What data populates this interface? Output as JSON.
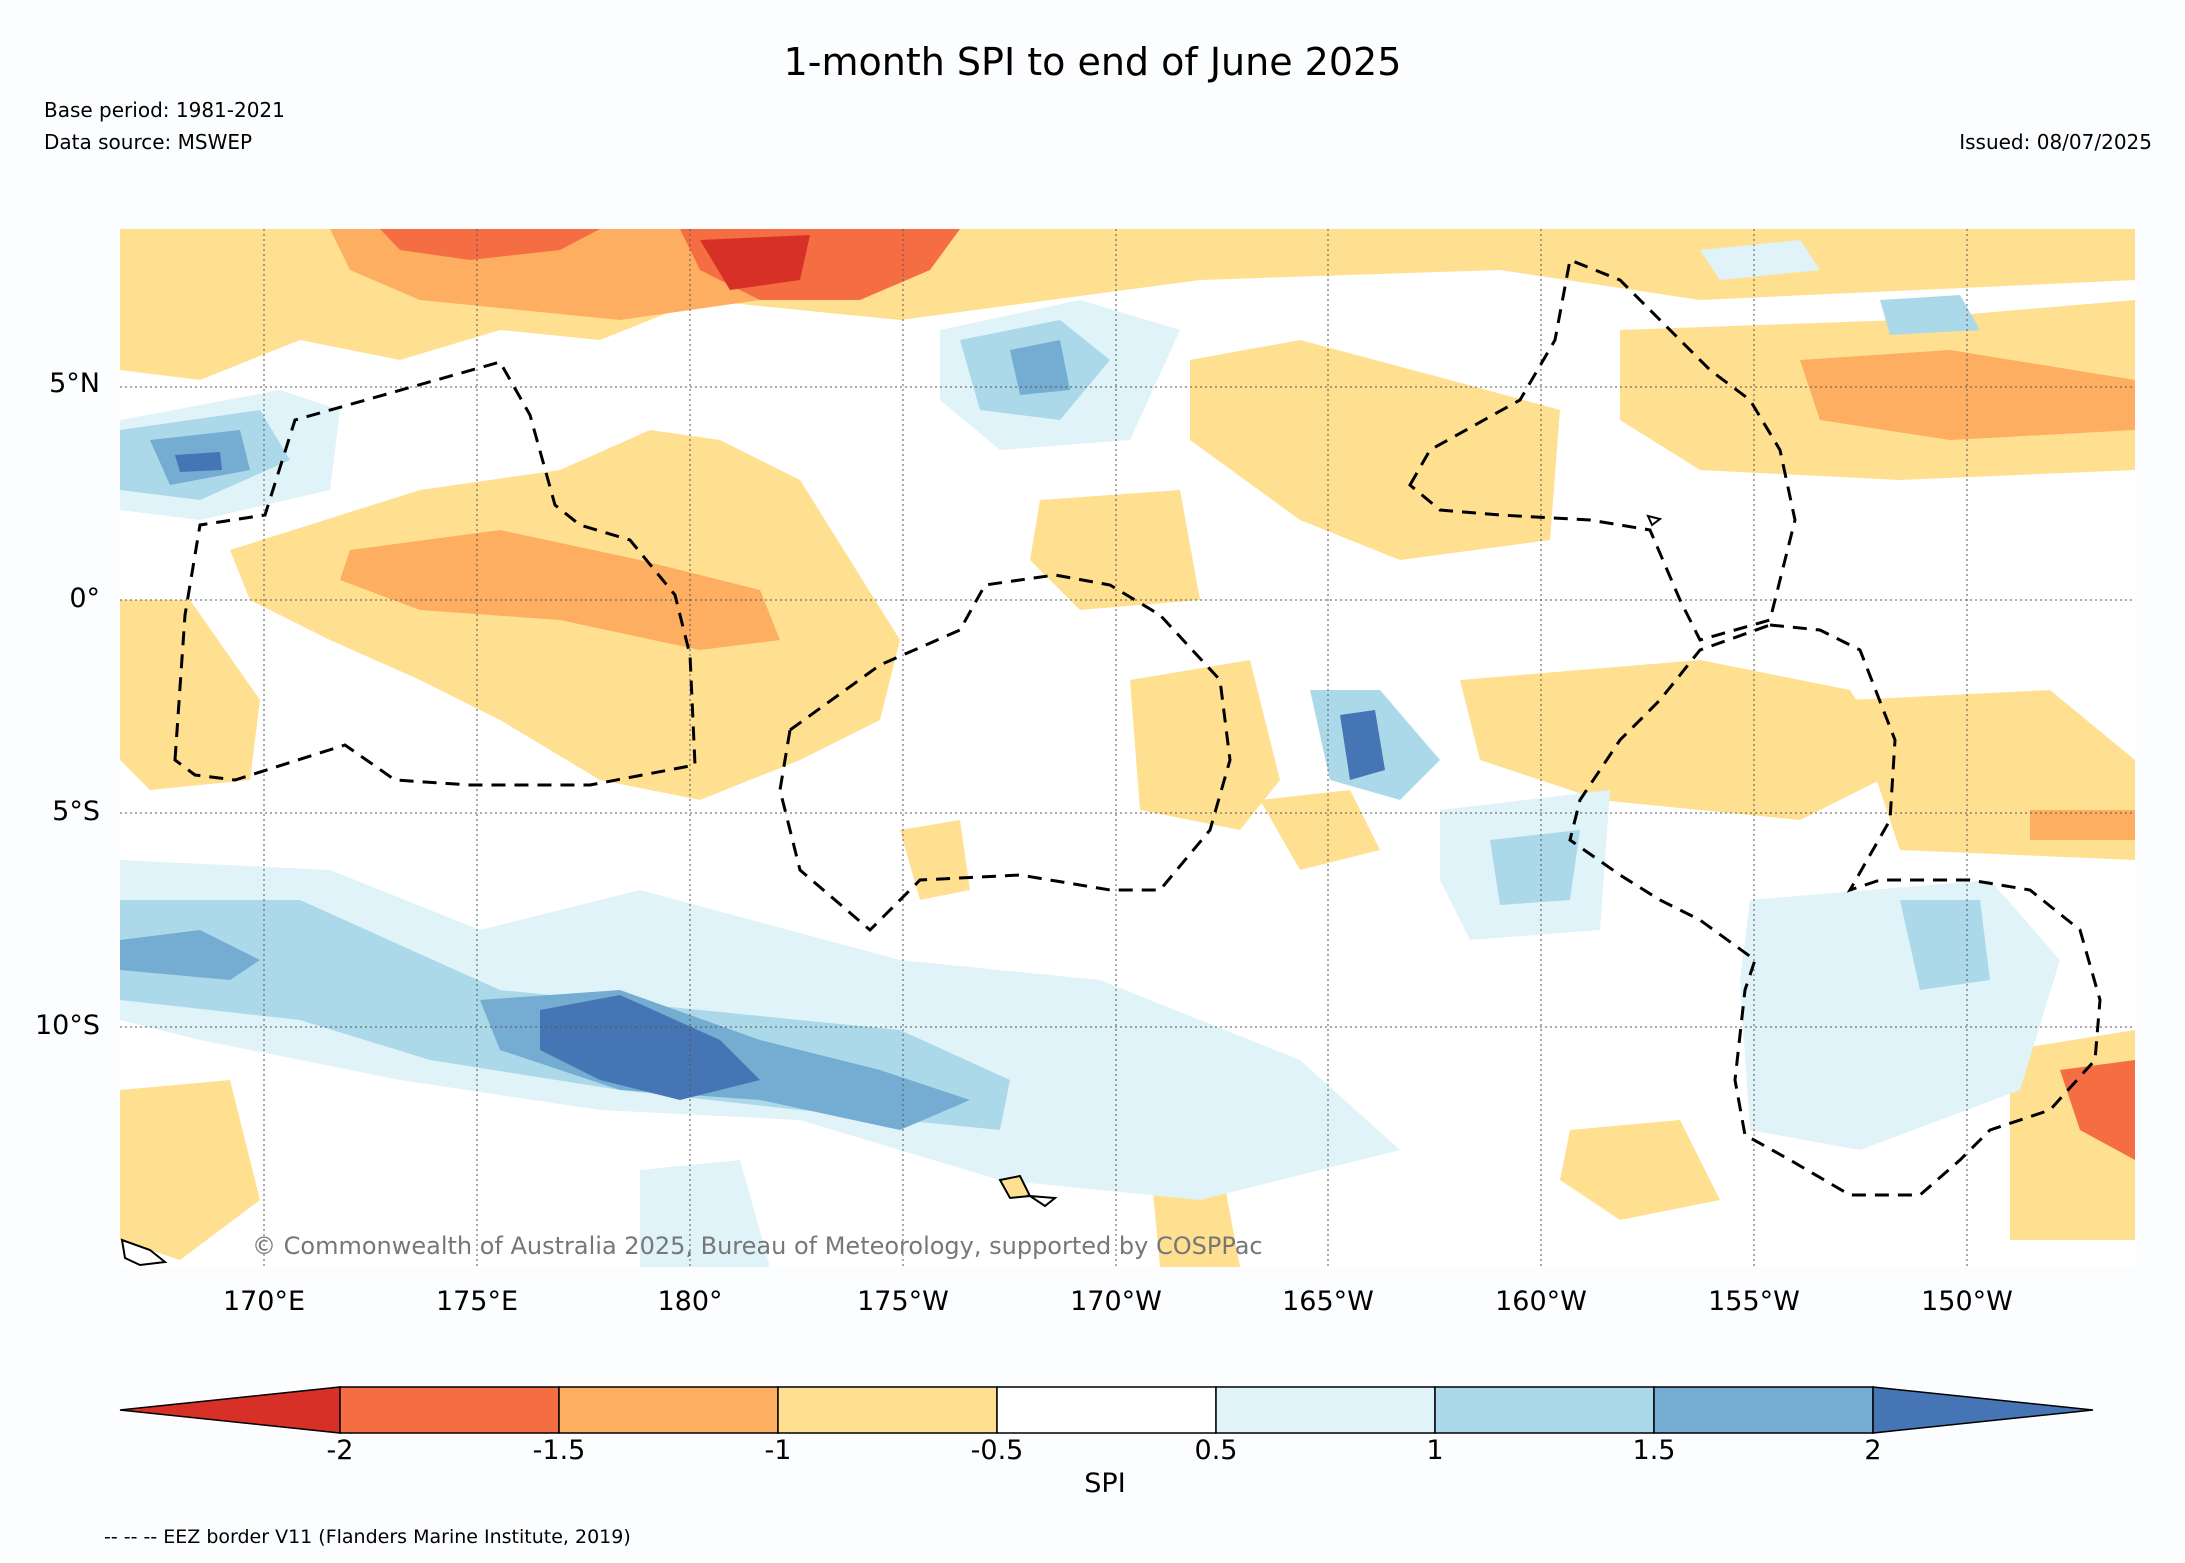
{
  "title": "1-month SPI to end of June 2025",
  "base_period": "Base period: 1981-2021",
  "data_source": "Data source: MSWEP",
  "issued": "Issued: 08/07/2025",
  "credit": "© Commonwealth of Australia 2025, Bureau of Meteorology, supported by COSPPac",
  "footer_note": "-- -- -- EEZ border V11 (Flanders Marine Institute, 2019)",
  "lat_labels": [
    "5°N",
    "0°",
    "5°S",
    "10°S"
  ],
  "lon_labels": [
    "170°E",
    "175°E",
    "180°",
    "175°W",
    "170°W",
    "165°W",
    "160°W",
    "155°W",
    "150°W"
  ],
  "colorbar": {
    "label": "SPI",
    "ticks": [
      "-2",
      "-1.5",
      "-1",
      "-0.5",
      "0.5",
      "1",
      "1.5",
      "2"
    ],
    "colors": {
      "lt_-2": "#d73027",
      "-2_-1.5": "#f46d43",
      "-1.5_-1": "#fdae61",
      "-1_-0.5": "#fee090",
      "-0.5_0.5": "#ffffff",
      "0.5_1": "#e0f3f8",
      "1_1.5": "#abd9e9",
      "1.5_2": "#74add1",
      "gt_2": "#4575b4"
    }
  }
}
